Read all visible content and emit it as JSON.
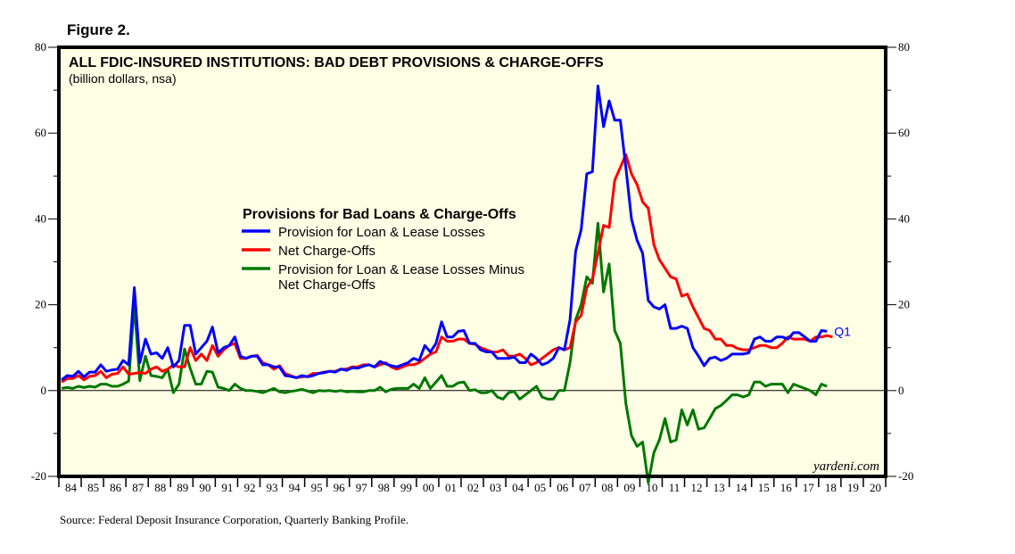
{
  "figure_label": "Figure 2.",
  "source": "Source: Federal Deposit Insurance Corporation, Quarterly Banking Profile.",
  "watermark": "yardeni.com",
  "colors": {
    "background": "#FFFFE6",
    "provision": "#0000FF",
    "net_charge_offs": "#FF0000",
    "difference": "#007800"
  },
  "chart_data": {
    "type": "line",
    "title": "ALL FDIC-INSURED INSTITUTIONS: BAD DEBT PROVISIONS & CHARGE-OFFS",
    "subtitle": "(billion dollars, nsa)",
    "legend_title": "Provisions for Bad Loans & Charge-Offs",
    "legend_position": "center-left",
    "xlabel": "",
    "ylabel": "",
    "ylim": [
      -20,
      80
    ],
    "y_ticks": [
      -20,
      0,
      20,
      40,
      60,
      80
    ],
    "x_tick_labels": [
      "84",
      "85",
      "86",
      "87",
      "88",
      "89",
      "90",
      "91",
      "92",
      "93",
      "94",
      "95",
      "96",
      "97",
      "98",
      "99",
      "00",
      "01",
      "02",
      "03",
      "04",
      "05",
      "06",
      "07",
      "08",
      "09",
      "10",
      "11",
      "12",
      "13",
      "14",
      "15",
      "16",
      "17",
      "18",
      "19",
      "20"
    ],
    "x_start": "1984Q1",
    "x_end_label": "Q1",
    "frequency": "quarterly",
    "grid": false,
    "zero_line": true,
    "series": [
      {
        "name": "Provision for Loan & Lease Losses",
        "color": "#0000FF",
        "values": [
          2.5,
          3.5,
          3.3,
          4.5,
          3.2,
          4.3,
          4.3,
          6.0,
          4.5,
          4.8,
          5.0,
          7.0,
          6.0,
          24.0,
          6.5,
          12.0,
          8.5,
          8.8,
          7.5,
          10.0,
          5.5,
          7.0,
          15.2,
          15.2,
          8.5,
          10.0,
          11.5,
          14.8,
          8.8,
          10.0,
          10.5,
          12.5,
          8.0,
          7.5,
          8.0,
          8.0,
          6.0,
          6.0,
          5.5,
          5.5,
          3.5,
          3.3,
          3.0,
          3.5,
          3.2,
          3.5,
          4.0,
          4.2,
          4.5,
          4.3,
          5.0,
          4.7,
          5.3,
          5.2,
          5.7,
          6.0,
          5.5,
          6.8,
          6.2,
          5.8,
          5.5,
          6.0,
          6.5,
          7.5,
          7.0,
          10.5,
          9.0,
          11.0,
          16.0,
          12.5,
          12.5,
          13.8,
          14.0,
          11.0,
          11.0,
          9.5,
          9.0,
          9.0,
          7.5,
          7.5,
          7.5,
          7.8,
          6.5,
          6.5,
          8.5,
          7.5,
          6.0,
          6.5,
          7.5,
          10.0,
          9.5,
          16.5,
          32.5,
          37.5,
          50.5,
          51.0,
          71.0,
          61.5,
          67.5,
          63.0,
          63.0,
          52.0,
          40.0,
          35.0,
          32.0,
          21.0,
          19.5,
          19.0,
          20.0,
          14.5,
          14.5,
          15.0,
          14.5,
          10.0,
          8.0,
          5.8,
          7.5,
          7.8,
          7.0,
          7.5,
          8.5,
          8.5,
          8.5,
          8.8,
          12.0,
          12.5,
          11.5,
          11.5,
          12.5,
          12.5,
          12.0,
          13.5,
          13.5,
          12.5,
          11.5,
          11.5,
          14.0,
          13.8
        ]
      },
      {
        "name": "Net Charge-Offs",
        "color": "#FF0000",
        "values": [
          2.0,
          2.8,
          2.8,
          3.5,
          2.5,
          3.3,
          3.5,
          4.5,
          3.0,
          3.8,
          4.0,
          5.5,
          3.8,
          4.0,
          4.2,
          4.0,
          5.0,
          5.5,
          4.5,
          5.0,
          6.0,
          5.5,
          5.5,
          10.0,
          7.0,
          8.5,
          7.0,
          10.5,
          8.0,
          9.5,
          10.5,
          11.0,
          7.5,
          7.5,
          8.0,
          8.2,
          6.5,
          6.0,
          5.0,
          5.8,
          4.0,
          3.5,
          3.0,
          3.2,
          3.3,
          4.0,
          4.0,
          4.3,
          4.5,
          4.5,
          5.0,
          5.0,
          5.5,
          5.5,
          6.0,
          6.0,
          5.5,
          6.0,
          6.5,
          5.5,
          5.0,
          5.5,
          6.0,
          6.0,
          6.5,
          7.5,
          8.5,
          9.0,
          12.5,
          11.5,
          11.5,
          12.0,
          12.0,
          11.0,
          10.8,
          10.0,
          9.5,
          9.0,
          9.0,
          9.5,
          8.0,
          8.0,
          8.5,
          7.5,
          6.0,
          6.5,
          7.5,
          8.5,
          9.5,
          10.0,
          9.5,
          10.0,
          16.0,
          17.5,
          24.0,
          26.0,
          32.0,
          38.5,
          38.0,
          49.0,
          52.0,
          55.0,
          50.5,
          48.0,
          44.0,
          42.5,
          34.0,
          30.5,
          28.5,
          26.5,
          26.0,
          22.0,
          22.5,
          19.5,
          17.0,
          14.5,
          14.0,
          12.0,
          12.0,
          10.5,
          10.5,
          9.8,
          9.5,
          9.5,
          10.0,
          10.5,
          10.5,
          10.0,
          10.0,
          11.0,
          12.5,
          12.0,
          12.0,
          12.0,
          11.5,
          12.5,
          12.5,
          12.8,
          12.5
        ]
      },
      {
        "name": "Provision for Loan & Lease Losses Minus Net Charge-Offs",
        "color": "#007800",
        "values": [
          0.5,
          0.7,
          0.5,
          1.0,
          0.7,
          1.0,
          0.8,
          1.5,
          1.5,
          1.0,
          1.0,
          1.5,
          2.2,
          20.0,
          2.3,
          8.0,
          3.5,
          3.3,
          3.0,
          5.0,
          -0.5,
          1.5,
          9.7,
          5.2,
          1.5,
          1.5,
          4.5,
          4.3,
          0.8,
          0.5,
          0.0,
          1.5,
          0.5,
          0.0,
          0.0,
          -0.2,
          -0.5,
          0.0,
          0.5,
          -0.3,
          -0.5,
          -0.2,
          0.0,
          0.3,
          -0.1,
          -0.5,
          0.0,
          -0.1,
          0.0,
          -0.2,
          0.0,
          -0.3,
          -0.2,
          -0.3,
          -0.3,
          0.0,
          0.0,
          0.8,
          -0.3,
          0.3,
          0.5,
          0.5,
          0.5,
          1.5,
          0.5,
          3.0,
          0.5,
          2.0,
          3.5,
          1.0,
          1.0,
          1.8,
          2.0,
          0.0,
          0.2,
          -0.5,
          -0.5,
          0.0,
          -1.5,
          -2.0,
          -0.5,
          -0.2,
          -2.0,
          -1.0,
          0.0,
          1.0,
          -1.5,
          -2.0,
          -2.0,
          0.0,
          0.0,
          6.5,
          16.5,
          20.0,
          26.5,
          25.0,
          39.0,
          23.0,
          29.5,
          14.0,
          11.0,
          -3.0,
          -10.5,
          -13.0,
          -12.0,
          -21.5,
          -14.5,
          -11.5,
          -6.5,
          -12.0,
          -11.5,
          -4.5,
          -8.0,
          -4.5,
          -9.0,
          -8.7,
          -6.5,
          -4.2,
          -3.5,
          -2.3,
          -1.0,
          -1.0,
          -1.5,
          -1.0,
          2.0,
          2.0,
          1.0,
          1.5,
          1.5,
          1.5,
          -0.5,
          1.5,
          1.0,
          0.5,
          0.0,
          -1.0,
          1.5,
          1.0
        ]
      }
    ]
  }
}
